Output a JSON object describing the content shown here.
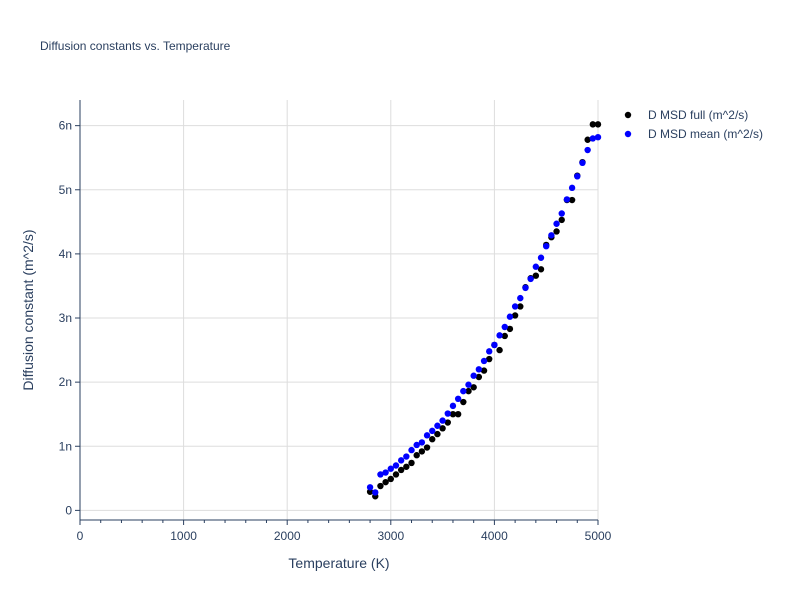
{
  "chart_data": {
    "type": "scatter",
    "title": "Diffusion constants vs. Temperature",
    "xlabel": "Temperature (K)",
    "ylabel": "Diffusion constant (m^2/s)",
    "xlim": [
      0,
      5000
    ],
    "ylim": [
      -1.5e-10,
      6.4e-09
    ],
    "x_ticks": [
      0,
      1000,
      2000,
      3000,
      4000,
      5000
    ],
    "x_tick_labels": [
      "0",
      "1000",
      "2000",
      "3000",
      "4000",
      "5000"
    ],
    "y_ticks": [
      0,
      1e-09,
      2e-09,
      3e-09,
      4e-09,
      5e-09,
      6e-09
    ],
    "y_tick_labels": [
      "0",
      "1n",
      "2n",
      "3n",
      "4n",
      "5n",
      "6n"
    ],
    "grid": true,
    "legend_position": "top-right",
    "series": [
      {
        "name": "D MSD full (m^2/s)",
        "color": "#000000",
        "x": [
          2800,
          2850,
          2900,
          2950,
          3000,
          3050,
          3100,
          3150,
          3200,
          3250,
          3300,
          3350,
          3400,
          3450,
          3500,
          3550,
          3600,
          3650,
          3700,
          3750,
          3800,
          3850,
          3900,
          3950,
          4000,
          4050,
          4100,
          4150,
          4200,
          4250,
          4300,
          4350,
          4400,
          4450,
          4500,
          4550,
          4600,
          4650,
          4700,
          4750,
          4800,
          4850,
          4900,
          4950,
          5000
        ],
        "y": [
          2.9e-10,
          2.2e-10,
          3.8e-10,
          4.4e-10,
          4.9e-10,
          5.6e-10,
          6.3e-10,
          6.8e-10,
          7.4e-10,
          8.6e-10,
          9.2e-10,
          9.8e-10,
          1.11e-09,
          1.19e-09,
          1.28e-09,
          1.37e-09,
          1.5e-09,
          1.5e-09,
          1.69e-09,
          1.86e-09,
          1.92e-09,
          2.08e-09,
          2.18e-09,
          2.36e-09,
          2.58e-09,
          2.5e-09,
          2.72e-09,
          2.83e-09,
          3.04e-09,
          3.18e-09,
          3.48e-09,
          3.62e-09,
          3.66e-09,
          3.76e-09,
          4.14e-09,
          4.26e-09,
          4.35e-09,
          4.53e-09,
          4.84e-09,
          4.84e-09,
          5.22e-09,
          5.43e-09,
          5.78e-09,
          6.02e-09,
          6.02e-09
        ]
      },
      {
        "name": "D MSD mean (m^2/s)",
        "color": "#0000ff",
        "x": [
          2800,
          2850,
          2900,
          2950,
          3000,
          3050,
          3100,
          3150,
          3200,
          3250,
          3300,
          3350,
          3400,
          3450,
          3500,
          3550,
          3600,
          3650,
          3700,
          3750,
          3800,
          3850,
          3900,
          3950,
          4000,
          4050,
          4100,
          4150,
          4200,
          4250,
          4300,
          4350,
          4400,
          4450,
          4500,
          4550,
          4600,
          4650,
          4700,
          4750,
          4800,
          4850,
          4900,
          4950,
          5000
        ],
        "y": [
          3.6e-10,
          2.8e-10,
          5.6e-10,
          5.9e-10,
          6.5e-10,
          7e-10,
          7.8e-10,
          8.4e-10,
          9.4e-10,
          1.02e-09,
          1.06e-09,
          1.17e-09,
          1.24e-09,
          1.32e-09,
          1.4e-09,
          1.51e-09,
          1.63e-09,
          1.74e-09,
          1.86e-09,
          1.96e-09,
          2.1e-09,
          2.2e-09,
          2.33e-09,
          2.48e-09,
          2.58e-09,
          2.73e-09,
          2.86e-09,
          3.02e-09,
          3.18e-09,
          3.31e-09,
          3.47e-09,
          3.61e-09,
          3.8e-09,
          3.94e-09,
          4.12e-09,
          4.29e-09,
          4.47e-09,
          4.63e-09,
          4.85e-09,
          5.03e-09,
          5.21e-09,
          5.42e-09,
          5.62e-09,
          5.8e-09,
          5.82e-09
        ]
      }
    ]
  }
}
